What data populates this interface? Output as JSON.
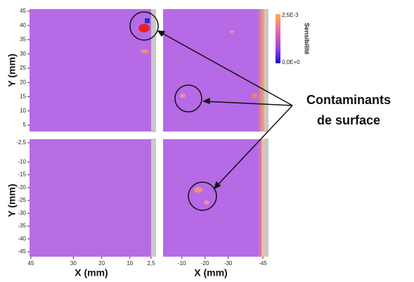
{
  "y_label": "Y (mm)",
  "x_label": "X (mm)",
  "top_left": {
    "yticks": [
      45,
      40,
      35,
      30,
      25,
      20,
      15,
      10,
      5
    ],
    "ylim": [
      45,
      5
    ]
  },
  "bottom_left": {
    "yticks": [
      {
        "value": -2.5,
        "label": "-2,5"
      },
      -10,
      -15,
      -20,
      -25,
      -30,
      -35,
      -40,
      -45
    ],
    "ylim": [
      -2.5,
      -45
    ],
    "xticks": [
      45,
      30,
      20,
      10,
      {
        "value": 2.5,
        "label": "2,5"
      }
    ],
    "xlim": [
      45,
      2.5
    ]
  },
  "bottom_right": {
    "xticks": [
      -10,
      -20,
      -30,
      -45
    ],
    "xlim": [
      -2.5,
      -45
    ]
  },
  "colorbar": {
    "title": "Sensibilité",
    "max_label": "2,5E-3",
    "min_label": "0,0E+0"
  },
  "annotation": [
    "Contaminants",
    "de surface"
  ]
}
